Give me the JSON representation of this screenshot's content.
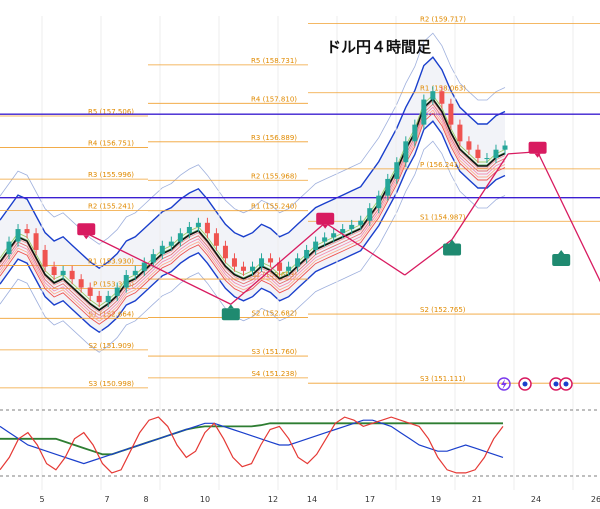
{
  "chart_data": {
    "type": "candlestick",
    "title": "ドル円４時間足",
    "x_ticks": [
      "5",
      "7",
      "8",
      "10",
      "12",
      "14",
      "17",
      "19",
      "21",
      "24",
      "26"
    ],
    "pivot_sets": [
      {
        "levels": [
          {
            "label": "R5 (157.506)"
          },
          {
            "label": "R4 (156.751)"
          },
          {
            "label": "R3 (155.996)"
          },
          {
            "label": "R2 (155.241)"
          },
          {
            "label": "R1 (153.930)"
          },
          {
            "label": "P (153.375)"
          },
          {
            "label": "S1 (152.664)"
          },
          {
            "label": "S2 (151.909)"
          },
          {
            "label": "S3 (150.998)"
          }
        ]
      },
      {
        "levels": [
          {
            "label": "R5 (158.731)"
          },
          {
            "label": "R4 (157.810)"
          },
          {
            "label": "R3 (156.889)"
          },
          {
            "label": "R2 (155.968)"
          },
          {
            "label": "R1 (155.240)"
          },
          {
            "label": "S1 (153.603)"
          },
          {
            "label": "S2 (152.682)"
          },
          {
            "label": "S3 (151.760)"
          },
          {
            "label": "S4 (151.238)"
          }
        ]
      },
      {
        "levels": [
          {
            "label": "R2 (159.717)"
          },
          {
            "label": "R1 (158.063)"
          },
          {
            "label": "P (156.241)"
          },
          {
            "label": "S1 (154.987)"
          },
          {
            "label": "S2 (152.765)"
          },
          {
            "label": "S3 (151.111)"
          }
        ]
      }
    ],
    "horizontal_lines": [
      157.55,
      155.55
    ],
    "key_points": [
      {
        "x": 1.5,
        "y": 154.7
      },
      {
        "x": 6.4,
        "y": 153.0
      },
      {
        "x": 9.6,
        "y": 154.95
      },
      {
        "x": 12.3,
        "y": 153.7
      },
      {
        "x": 13.9,
        "y": 154.55
      },
      {
        "x": 15.8,
        "y": 156.6
      },
      {
        "x": 16.8,
        "y": 156.65
      },
      {
        "x": 19.3,
        "y": 153.0
      }
    ],
    "markers": [
      {
        "kind": "sell",
        "x": 1.5,
        "y": 154.7
      },
      {
        "kind": "buy",
        "x": 6.4,
        "y": 153.0
      },
      {
        "kind": "sell",
        "x": 9.6,
        "y": 154.95
      },
      {
        "kind": "buy",
        "x": 13.9,
        "y": 154.55
      },
      {
        "kind": "sell",
        "x": 16.8,
        "y": 156.65
      },
      {
        "kind": "buy",
        "x": 17.6,
        "y": 154.3
      }
    ],
    "close_series": [
      154.2,
      154.5,
      154.8,
      154.7,
      154.3,
      153.9,
      153.7,
      153.8,
      153.6,
      153.4,
      153.2,
      153.05,
      153.2,
      153.4,
      153.7,
      153.8,
      154.0,
      154.2,
      154.4,
      154.5,
      154.7,
      154.85,
      154.95,
      154.7,
      154.4,
      154.1,
      153.9,
      153.8,
      153.9,
      154.1,
      154.0,
      153.8,
      153.9,
      154.1,
      154.3,
      154.5,
      154.6,
      154.7,
      154.8,
      154.9,
      155.0,
      155.3,
      155.6,
      156.0,
      156.4,
      156.9,
      157.3,
      157.9,
      158.1,
      157.8,
      157.3,
      156.9,
      156.7,
      156.5,
      156.5,
      156.7,
      156.8
    ],
    "oscillator": {
      "red": [
        0.1,
        0.3,
        0.6,
        0.7,
        0.5,
        0.2,
        0.1,
        0.3,
        0.6,
        0.7,
        0.5,
        0.2,
        0.05,
        0.1,
        0.4,
        0.7,
        0.9,
        0.95,
        0.8,
        0.5,
        0.3,
        0.4,
        0.7,
        0.85,
        0.6,
        0.3,
        0.15,
        0.2,
        0.5,
        0.75,
        0.8,
        0.6,
        0.3,
        0.2,
        0.35,
        0.6,
        0.85,
        0.95,
        0.9,
        0.8,
        0.85,
        0.9,
        0.95,
        0.9,
        0.85,
        0.8,
        0.6,
        0.3,
        0.1,
        0.05,
        0.05,
        0.1,
        0.3,
        0.6,
        0.8
      ],
      "blue": [
        0.8,
        0.7,
        0.6,
        0.5,
        0.45,
        0.4,
        0.35,
        0.3,
        0.25,
        0.2,
        0.25,
        0.3,
        0.35,
        0.4,
        0.45,
        0.5,
        0.55,
        0.6,
        0.65,
        0.7,
        0.75,
        0.8,
        0.85,
        0.85,
        0.8,
        0.75,
        0.7,
        0.65,
        0.6,
        0.55,
        0.5,
        0.5,
        0.55,
        0.6,
        0.65,
        0.7,
        0.75,
        0.8,
        0.85,
        0.9,
        0.9,
        0.85,
        0.8,
        0.7,
        0.6,
        0.5,
        0.45,
        0.4,
        0.4,
        0.45,
        0.5,
        0.45,
        0.4,
        0.35,
        0.3
      ],
      "green": [
        0.6,
        0.6,
        0.6,
        0.6,
        0.6,
        0.6,
        0.6,
        0.55,
        0.5,
        0.45,
        0.4,
        0.35,
        0.35,
        0.4,
        0.45,
        0.5,
        0.55,
        0.6,
        0.65,
        0.7,
        0.75,
        0.78,
        0.8,
        0.8,
        0.8,
        0.8,
        0.8,
        0.8,
        0.82,
        0.85,
        0.85,
        0.85,
        0.85,
        0.85,
        0.85,
        0.85,
        0.85,
        0.85,
        0.85,
        0.85,
        0.85,
        0.85,
        0.85,
        0.85,
        0.85,
        0.85,
        0.85,
        0.85,
        0.85,
        0.85,
        0.85,
        0.85,
        0.85,
        0.85,
        0.85
      ]
    },
    "colors": {
      "pivot": "#f0a030",
      "support_resistance": "#3b1fd1",
      "bollinger": "#1a3fcc",
      "trend": "#d81b60",
      "ma_black": "#111111",
      "candle_up": "#26a69a",
      "candle_down": "#ef5350",
      "sell_marker": "#d81b60",
      "buy_marker": "#1f8a70"
    }
  }
}
